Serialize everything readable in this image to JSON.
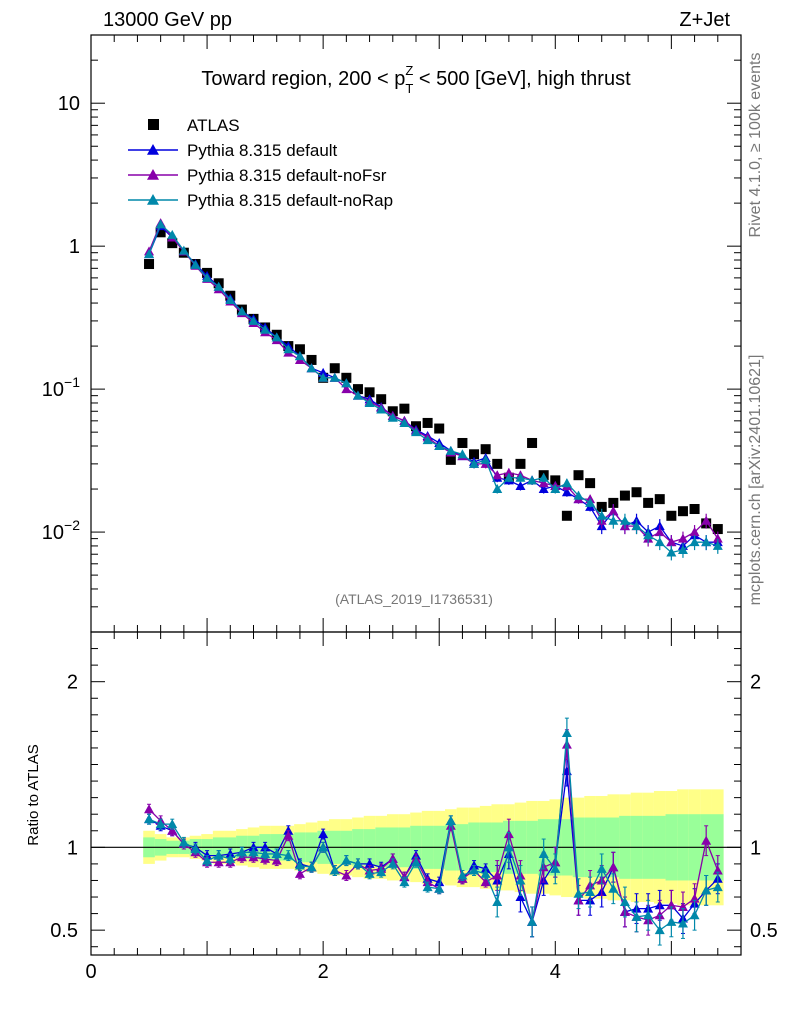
{
  "header": {
    "energy_label": "13000 GeV pp",
    "process_label": "Z+Jet",
    "title": "Toward region, 200 < p",
    "title_sup": "Z",
    "title_sub": "T",
    "title_end": " < 500 [GeV], high thrust",
    "analysis_id": "(ATLAS_2019_I1736531)"
  },
  "side_labels": {
    "rivet": "Rivet 4.1.0, ≥ 100k events",
    "mcplots": "mcplots.cern.ch [arXiv:2401.10621]"
  },
  "legend": [
    {
      "label": "ATLAS",
      "marker": "square",
      "color": "#000000"
    },
    {
      "label": "Pythia 8.315 default",
      "marker": "triangle",
      "color": "#0000dd"
    },
    {
      "label": "Pythia 8.315 default-noFsr",
      "marker": "triangle",
      "color": "#8800aa"
    },
    {
      "label": "Pythia 8.315 default-noRap",
      "marker": "triangle",
      "color": "#0088aa"
    }
  ],
  "chart_data": {
    "type": "line",
    "x": [
      0.5,
      0.6,
      0.7,
      0.8,
      0.9,
      1.0,
      1.1,
      1.2,
      1.3,
      1.4,
      1.5,
      1.6,
      1.7,
      1.8,
      1.9,
      2.0,
      2.1,
      2.2,
      2.3,
      2.4,
      2.5,
      2.6,
      2.7,
      2.8,
      2.9,
      3.0,
      3.1,
      3.2,
      3.3,
      3.4,
      3.5,
      3.6,
      3.7,
      3.8,
      3.9,
      4.0,
      4.1,
      4.2,
      4.3,
      4.4,
      4.5,
      4.6,
      4.7,
      4.8,
      4.9,
      5.0,
      5.1,
      5.2,
      5.3,
      5.4
    ],
    "main": {
      "yscale": "log",
      "ylim": [
        0.002,
        30
      ],
      "y_ticks": [
        "10",
        "1",
        "10^-1",
        "10^-2"
      ],
      "series": [
        {
          "name": "ATLAS",
          "values": [
            0.75,
            1.25,
            1.05,
            0.9,
            0.75,
            0.65,
            0.55,
            0.45,
            0.36,
            0.31,
            0.27,
            0.24,
            0.2,
            0.19,
            0.16,
            0.12,
            0.14,
            0.12,
            0.1,
            0.095,
            0.085,
            0.07,
            0.073,
            0.055,
            0.058,
            0.053,
            0.032,
            0.042,
            0.035,
            0.038,
            0.03,
            0.024,
            0.03,
            0.042,
            0.025,
            0.023,
            0.013,
            0.025,
            0.022,
            0.015,
            0.016,
            0.018,
            0.019,
            0.016,
            0.017,
            0.013,
            0.014,
            0.0145,
            0.0115,
            0.0105
          ]
        },
        {
          "name": "Pythia 8.315 default",
          "values": [
            0.88,
            1.38,
            1.15,
            0.92,
            0.75,
            0.62,
            0.52,
            0.43,
            0.35,
            0.31,
            0.27,
            0.23,
            0.2,
            0.17,
            0.14,
            0.13,
            0.12,
            0.11,
            0.09,
            0.085,
            0.075,
            0.065,
            0.06,
            0.052,
            0.047,
            0.042,
            0.037,
            0.034,
            0.031,
            0.033,
            0.024,
            0.023,
            0.021,
            0.023,
            0.02,
            0.021,
            0.019,
            0.017,
            0.015,
            0.011,
            0.014,
            0.011,
            0.012,
            0.01,
            0.011,
            0.0085,
            0.008,
            0.0095,
            0.0085,
            0.0085
          ]
        },
        {
          "name": "Pythia 8.315 default-noFsr",
          "values": [
            0.92,
            1.45,
            1.15,
            0.92,
            0.73,
            0.59,
            0.5,
            0.41,
            0.34,
            0.29,
            0.25,
            0.22,
            0.18,
            0.16,
            0.14,
            0.12,
            0.12,
            0.1,
            0.09,
            0.082,
            0.074,
            0.065,
            0.06,
            0.051,
            0.046,
            0.04,
            0.036,
            0.034,
            0.03,
            0.03,
            0.025,
            0.026,
            0.025,
            0.023,
            0.022,
            0.021,
            0.021,
            0.017,
            0.017,
            0.012,
            0.014,
            0.011,
            0.011,
            0.009,
            0.01,
            0.0085,
            0.009,
            0.01,
            0.012,
            0.009
          ]
        },
        {
          "name": "Pythia 8.315 default-noRap",
          "values": [
            0.88,
            1.42,
            1.2,
            0.93,
            0.74,
            0.6,
            0.52,
            0.42,
            0.35,
            0.3,
            0.26,
            0.23,
            0.19,
            0.17,
            0.14,
            0.12,
            0.12,
            0.11,
            0.09,
            0.08,
            0.072,
            0.063,
            0.058,
            0.05,
            0.044,
            0.04,
            0.037,
            0.035,
            0.03,
            0.032,
            0.02,
            0.024,
            0.024,
            0.023,
            0.024,
            0.02,
            0.022,
            0.018,
            0.016,
            0.013,
            0.012,
            0.012,
            0.011,
            0.0095,
            0.0085,
            0.0072,
            0.0075,
            0.0085,
            0.0085,
            0.008
          ]
        }
      ]
    },
    "ratio": {
      "ylabel": "Ratio to ATLAS",
      "ylim": [
        0.35,
        2.3
      ],
      "y_ticks": [
        "2",
        "1",
        "0.5"
      ],
      "x_ticks": [
        "0",
        "2",
        "4"
      ],
      "band_yellow_halfwidth": [
        0.1,
        0.08,
        0.06,
        0.06,
        0.07,
        0.08,
        0.1,
        0.1,
        0.11,
        0.12,
        0.13,
        0.13,
        0.13,
        0.14,
        0.15,
        0.16,
        0.17,
        0.17,
        0.18,
        0.19,
        0.19,
        0.2,
        0.2,
        0.21,
        0.22,
        0.22,
        0.23,
        0.24,
        0.24,
        0.25,
        0.26,
        0.26,
        0.27,
        0.28,
        0.28,
        0.29,
        0.3,
        0.3,
        0.31,
        0.31,
        0.32,
        0.32,
        0.33,
        0.33,
        0.34,
        0.34,
        0.35,
        0.35,
        0.35,
        0.35
      ],
      "band_green_halfwidth": [
        0.06,
        0.05,
        0.04,
        0.04,
        0.05,
        0.05,
        0.06,
        0.06,
        0.07,
        0.07,
        0.08,
        0.08,
        0.08,
        0.09,
        0.09,
        0.1,
        0.1,
        0.1,
        0.11,
        0.11,
        0.12,
        0.12,
        0.12,
        0.13,
        0.13,
        0.13,
        0.14,
        0.14,
        0.15,
        0.15,
        0.15,
        0.16,
        0.16,
        0.16,
        0.17,
        0.17,
        0.17,
        0.18,
        0.18,
        0.18,
        0.18,
        0.19,
        0.19,
        0.19,
        0.19,
        0.2,
        0.2,
        0.2,
        0.2,
        0.2
      ],
      "series": [
        {
          "name": "Pythia 8.315 default",
          "values": [
            1.17,
            1.13,
            1.1,
            1.02,
            1.0,
            0.95,
            0.95,
            0.96,
            0.97,
            1.0,
            1.0,
            0.96,
            1.1,
            0.9,
            0.88,
            1.08,
            0.86,
            0.92,
            0.9,
            0.9,
            0.88,
            0.93,
            0.82,
            0.95,
            0.81,
            0.79,
            1.16,
            0.81,
            0.89,
            0.87,
            0.8,
            0.96,
            0.7,
            0.55,
            0.8,
            0.91,
            1.46,
            0.68,
            0.68,
            0.73,
            0.88,
            0.61,
            0.63,
            0.63,
            0.65,
            0.65,
            0.57,
            0.66,
            0.74,
            0.81
          ]
        },
        {
          "name": "Pythia 8.315 default-noFsr",
          "values": [
            1.23,
            1.16,
            1.1,
            1.02,
            0.97,
            0.91,
            0.91,
            0.91,
            0.94,
            0.94,
            0.93,
            0.92,
            1.07,
            0.84,
            0.88,
            1.0,
            0.86,
            0.83,
            0.9,
            0.86,
            0.87,
            0.93,
            0.82,
            0.93,
            0.79,
            0.75,
            1.13,
            0.81,
            0.86,
            0.79,
            0.83,
            1.08,
            0.83,
            0.55,
            0.88,
            0.91,
            1.62,
            0.68,
            0.77,
            0.8,
            0.88,
            0.61,
            0.58,
            0.56,
            0.59,
            0.65,
            0.64,
            0.69,
            1.04,
            0.86
          ]
        },
        {
          "name": "Pythia 8.315 default-noRap",
          "values": [
            1.17,
            1.14,
            1.14,
            1.03,
            0.99,
            0.92,
            0.95,
            0.93,
            0.97,
            0.97,
            0.96,
            0.96,
            0.95,
            0.89,
            0.88,
            1.0,
            0.86,
            0.92,
            0.9,
            0.84,
            0.85,
            0.9,
            0.79,
            0.91,
            0.76,
            0.75,
            1.16,
            0.83,
            0.86,
            0.84,
            0.67,
            1.0,
            0.8,
            0.55,
            0.96,
            0.87,
            1.69,
            0.72,
            0.73,
            0.87,
            0.75,
            0.67,
            0.58,
            0.59,
            0.5,
            0.55,
            0.54,
            0.59,
            0.74,
            0.76
          ]
        }
      ]
    }
  }
}
